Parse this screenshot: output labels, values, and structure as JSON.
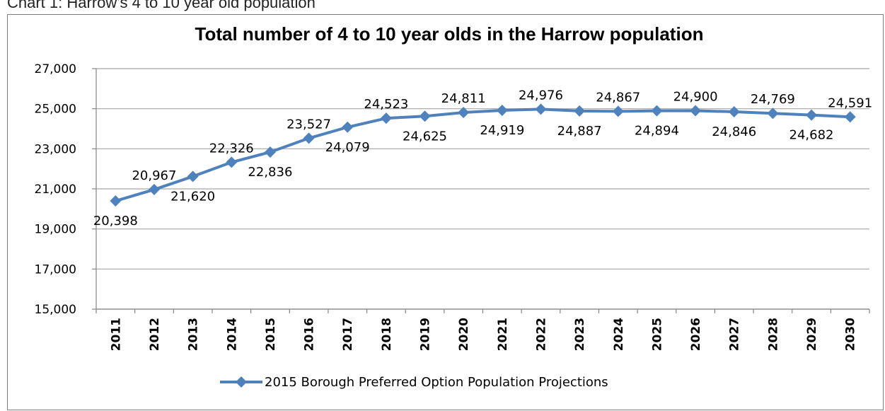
{
  "caption": "Chart 1: Harrow's 4 to 10 year old population",
  "chart_data": {
    "type": "line",
    "title": "Total number of 4 to 10 year olds in the Harrow population",
    "xlabel": "",
    "ylabel": "",
    "ylim": [
      15000,
      27000
    ],
    "yticks": [
      15000,
      17000,
      19000,
      21000,
      23000,
      25000,
      27000
    ],
    "ytick_labels": [
      "15,000",
      "17,000",
      "19,000",
      "21,000",
      "23,000",
      "25,000",
      "27,000"
    ],
    "grid": true,
    "legend_position": "bottom",
    "categories": [
      "2011",
      "2012",
      "2013",
      "2014",
      "2015",
      "2016",
      "2017",
      "2018",
      "2019",
      "2020",
      "2021",
      "2022",
      "2023",
      "2024",
      "2025",
      "2026",
      "2027",
      "2028",
      "2029",
      "2030"
    ],
    "series": [
      {
        "name": "2015 Borough Preferred Option Population Projections",
        "color": "#4f81bd",
        "values": [
          20398,
          20967,
          21620,
          22326,
          22836,
          23527,
          24079,
          24523,
          24625,
          24811,
          24919,
          24976,
          24887,
          24867,
          24894,
          24900,
          24846,
          24769,
          24682,
          24591
        ],
        "labels": [
          "20,398",
          "20,967",
          "21,620",
          "22,326",
          "22,836",
          "23,527",
          "24,079",
          "24,523",
          "24,625",
          "24,811",
          "24,919",
          "24,976",
          "24,887",
          "24,867",
          "24,894",
          "24,900",
          "24,846",
          "24,769",
          "24,682",
          "24,591"
        ],
        "label_positions": [
          "below",
          "above",
          "below",
          "above",
          "below",
          "above",
          "below",
          "above",
          "below",
          "above",
          "below",
          "above",
          "below",
          "above",
          "below",
          "above",
          "below",
          "above",
          "below",
          "above"
        ]
      }
    ]
  }
}
